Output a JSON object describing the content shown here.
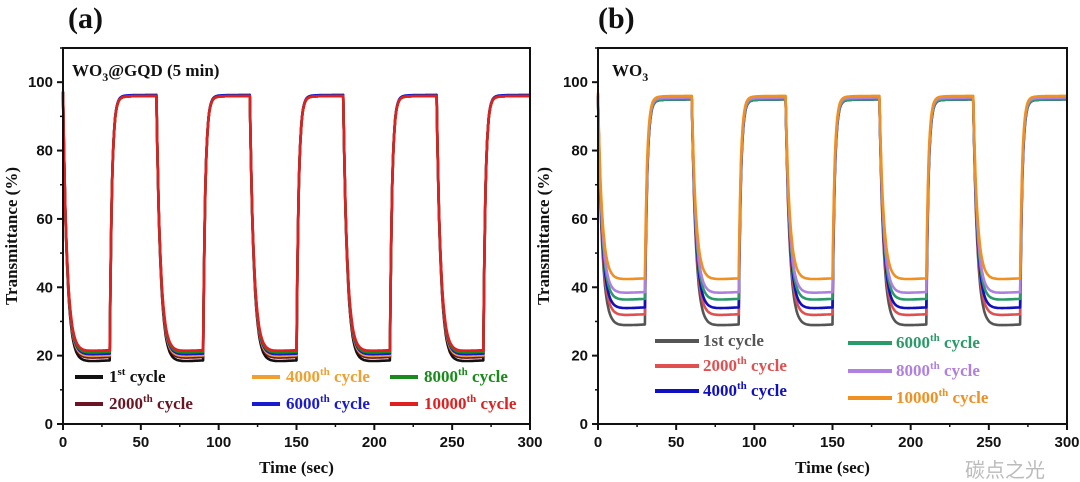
{
  "chart_data": [
    {
      "type": "line",
      "panel_label": "(a)",
      "inner_label": {
        "main": "WO",
        "sub": "3",
        "rest": "@GQD (5 min)"
      },
      "xlabel": "Time (sec)",
      "ylabel": "Transmittance (%)",
      "xlim": [
        0,
        300
      ],
      "ylim": [
        0,
        110
      ],
      "xticks": [
        0,
        50,
        100,
        150,
        200,
        250,
        300
      ],
      "yticks": [
        0,
        20,
        40,
        60,
        80,
        100
      ],
      "grid": false,
      "legend_placement": "bottom",
      "cycle_period_sec": 60,
      "coloring_duration_sec": 30,
      "series": [
        {
          "label": {
            "num": "1",
            "sup": "st",
            "rest": " cycle"
          },
          "color": "#111111",
          "max": 96,
          "min": 18
        },
        {
          "label": {
            "num": "2000",
            "sup": "th",
            "rest": " cycle"
          },
          "color": "#6b1424",
          "max": 96,
          "min": 19
        },
        {
          "label": {
            "num": "4000",
            "sup": "th",
            "rest": " cycle"
          },
          "color": "#f0a030",
          "max": 96,
          "min": 19.5
        },
        {
          "label": {
            "num": "6000",
            "sup": "th",
            "rest": " cycle"
          },
          "color": "#1a1ad0",
          "max": 96.3,
          "min": 20
        },
        {
          "label": {
            "num": "8000",
            "sup": "th",
            "rest": " cycle"
          },
          "color": "#1a8a1a",
          "max": 96,
          "min": 20.5
        },
        {
          "label": {
            "num": "10000",
            "sup": "th",
            "rest": " cycle"
          },
          "color": "#e02020",
          "max": 96,
          "min": 21
        }
      ]
    },
    {
      "type": "line",
      "panel_label": "(b)",
      "inner_label": {
        "main": "WO",
        "sub": "3",
        "rest": ""
      },
      "xlabel": "Time (sec)",
      "ylabel": "Transmittance (%)",
      "xlim": [
        0,
        300
      ],
      "ylim": [
        0,
        110
      ],
      "xticks": [
        0,
        50,
        100,
        150,
        200,
        250,
        300
      ],
      "yticks": [
        0,
        20,
        40,
        60,
        80,
        100
      ],
      "grid": false,
      "legend_placement": "bottom",
      "cycle_period_sec": 60,
      "coloring_duration_sec": 30,
      "series": [
        {
          "label": {
            "num": "1st",
            "sup": "",
            "rest": " cycle"
          },
          "color": "#555555",
          "max": 95,
          "min": 28.5
        },
        {
          "label": {
            "num": "2000",
            "sup": "th",
            "rest": " cycle"
          },
          "color": "#e05050",
          "max": 95,
          "min": 31.5
        },
        {
          "label": {
            "num": "4000",
            "sup": "th",
            "rest": " cycle"
          },
          "color": "#1010c0",
          "max": 95,
          "min": 33.5
        },
        {
          "label": {
            "num": "6000",
            "sup": "th",
            "rest": " cycle"
          },
          "color": "#2a9a6a",
          "max": 95,
          "min": 36
        },
        {
          "label": {
            "num": "8000",
            "sup": "th",
            "rest": " cycle"
          },
          "color": "#b080e0",
          "max": 95.5,
          "min": 38
        },
        {
          "label": {
            "num": "10000",
            "sup": "th",
            "rest": " cycle"
          },
          "color": "#f09020",
          "max": 96,
          "min": 42
        }
      ]
    }
  ],
  "watermark": "碳点之光"
}
